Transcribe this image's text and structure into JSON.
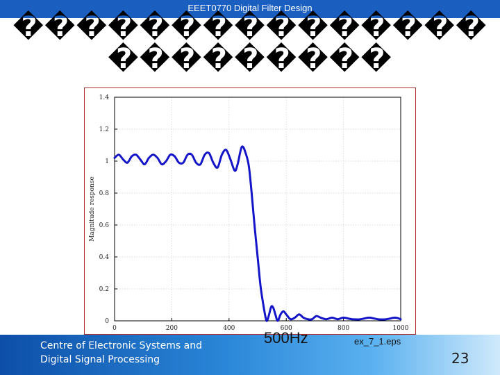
{
  "header": {
    "title": "EEET0770 Digital Filter Design"
  },
  "slide": {
    "title_lines": [
      "���������������",
      "���������"
    ]
  },
  "footer": {
    "org_line1": "Centre of Electronic Systems and",
    "org_line2": "Digital Signal Processing",
    "page_number": "23"
  },
  "captions": {
    "frequency": "500Hz",
    "filename": "ex_7_1.eps"
  },
  "colors": {
    "header_blue": "#1a5fbf",
    "curve_blue": "#1414c8",
    "frame_red": "#b03030"
  },
  "chart_data": {
    "type": "line",
    "ylabel": "Magnitude response",
    "xlabel": "",
    "xlim": [
      0,
      1000
    ],
    "ylim": [
      0,
      1.4
    ],
    "xticks": [
      0,
      200,
      400,
      600,
      800,
      1000
    ],
    "yticks": [
      0,
      0.2,
      0.4,
      0.6,
      0.8,
      1,
      1.2,
      1.4
    ],
    "xtick_labels": [
      "0",
      "200",
      "400",
      "600",
      "800",
      "1000"
    ],
    "ytick_labels": [
      "0",
      "0.2",
      "0.4",
      "0.6",
      "0.8",
      "1",
      "1.2",
      "1.4"
    ],
    "grid": true,
    "series": [
      {
        "x": [
          0,
          15,
          30,
          45,
          60,
          75,
          90,
          105,
          120,
          135,
          150,
          165,
          180,
          195,
          210,
          225,
          240,
          255,
          270,
          285,
          300,
          315,
          330,
          345,
          360,
          375,
          390,
          405,
          420,
          430,
          445,
          460,
          470,
          480,
          490,
          500,
          510,
          520,
          528,
          533,
          540,
          548,
          555,
          562,
          570,
          580,
          590,
          600,
          615,
          630,
          645,
          660,
          675,
          690,
          705,
          720,
          740,
          760,
          780,
          800,
          830,
          860,
          890,
          920,
          950,
          980,
          1000
        ],
        "y": [
          1.02,
          1.04,
          1.01,
          0.99,
          1.03,
          1.04,
          1.01,
          0.98,
          1.02,
          1.04,
          1.02,
          0.98,
          1.0,
          1.04,
          1.03,
          0.99,
          0.99,
          1.04,
          1.04,
          0.99,
          0.98,
          1.04,
          1.05,
          0.99,
          0.96,
          1.04,
          1.07,
          1.01,
          0.94,
          0.98,
          1.09,
          1.04,
          0.96,
          0.78,
          0.58,
          0.4,
          0.22,
          0.1,
          0.02,
          0.0,
          0.04,
          0.09,
          0.08,
          0.04,
          0.0,
          0.04,
          0.06,
          0.04,
          0.01,
          0.02,
          0.04,
          0.02,
          0.01,
          0.01,
          0.03,
          0.02,
          0.01,
          0.02,
          0.01,
          0.02,
          0.01,
          0.01,
          0.02,
          0.01,
          0.01,
          0.02,
          0.01
        ]
      }
    ]
  }
}
